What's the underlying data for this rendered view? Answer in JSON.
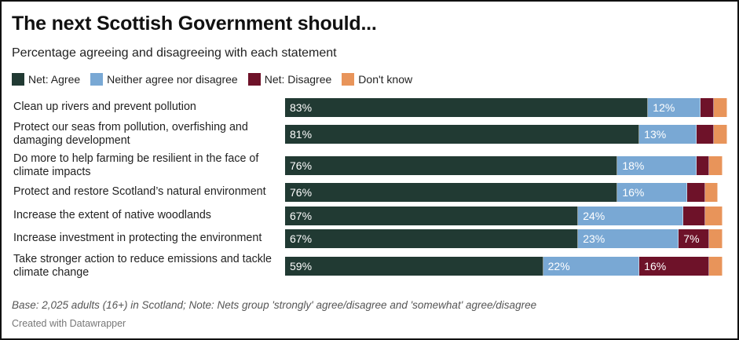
{
  "chart_data": {
    "type": "bar",
    "orientation": "horizontal",
    "stacked": true,
    "title": "The next Scottish Government should...",
    "subtitle": "Percentage agreeing and disagreeing with each statement",
    "xlabel": "",
    "ylabel": "",
    "xlim": [
      0,
      100
    ],
    "grid": false,
    "legend_position": "top-left",
    "categories": [
      "Clean up rivers and prevent pollution",
      "Protect our seas from pollution, overfishing and damaging development",
      "Do more to help farming be resilient in the face of climate impacts",
      "Protect and restore Scotland’s natural environment",
      "Increase the extent of native woodlands",
      "Increase investment in protecting the environment",
      "Take stronger action to reduce emissions and tackle climate change"
    ],
    "series": [
      {
        "name": "Net: Agree",
        "color": "#213a33",
        "values": [
          83,
          81,
          76,
          76,
          67,
          67,
          59
        ],
        "labels": [
          "83%",
          "81%",
          "76%",
          "76%",
          "67%",
          "67%",
          "59%"
        ]
      },
      {
        "name": "Neither agree nor disagree",
        "color": "#79a8d4",
        "values": [
          12,
          13,
          18,
          16,
          24,
          23,
          22
        ],
        "labels": [
          "12%",
          "13%",
          "18%",
          "16%",
          "24%",
          "23%",
          "22%"
        ]
      },
      {
        "name": "Net: Disagree",
        "color": "#6e1229",
        "values": [
          3,
          4,
          3,
          4,
          5,
          7,
          16
        ],
        "labels": [
          "",
          "",
          "",
          "",
          "",
          "7%",
          "16%"
        ]
      },
      {
        "name": "Don't know",
        "color": "#e8945a",
        "values": [
          3,
          3,
          3,
          3,
          4,
          3,
          3
        ],
        "labels": [
          "",
          "",
          "",
          "",
          "",
          "",
          ""
        ]
      }
    ],
    "notes": "Base: 2,025 adults (16+) in Scotland; Note: Nets group 'strongly' agree/disagree and 'somewhat' agree/disagree",
    "credit": "Created with Datawrapper"
  }
}
